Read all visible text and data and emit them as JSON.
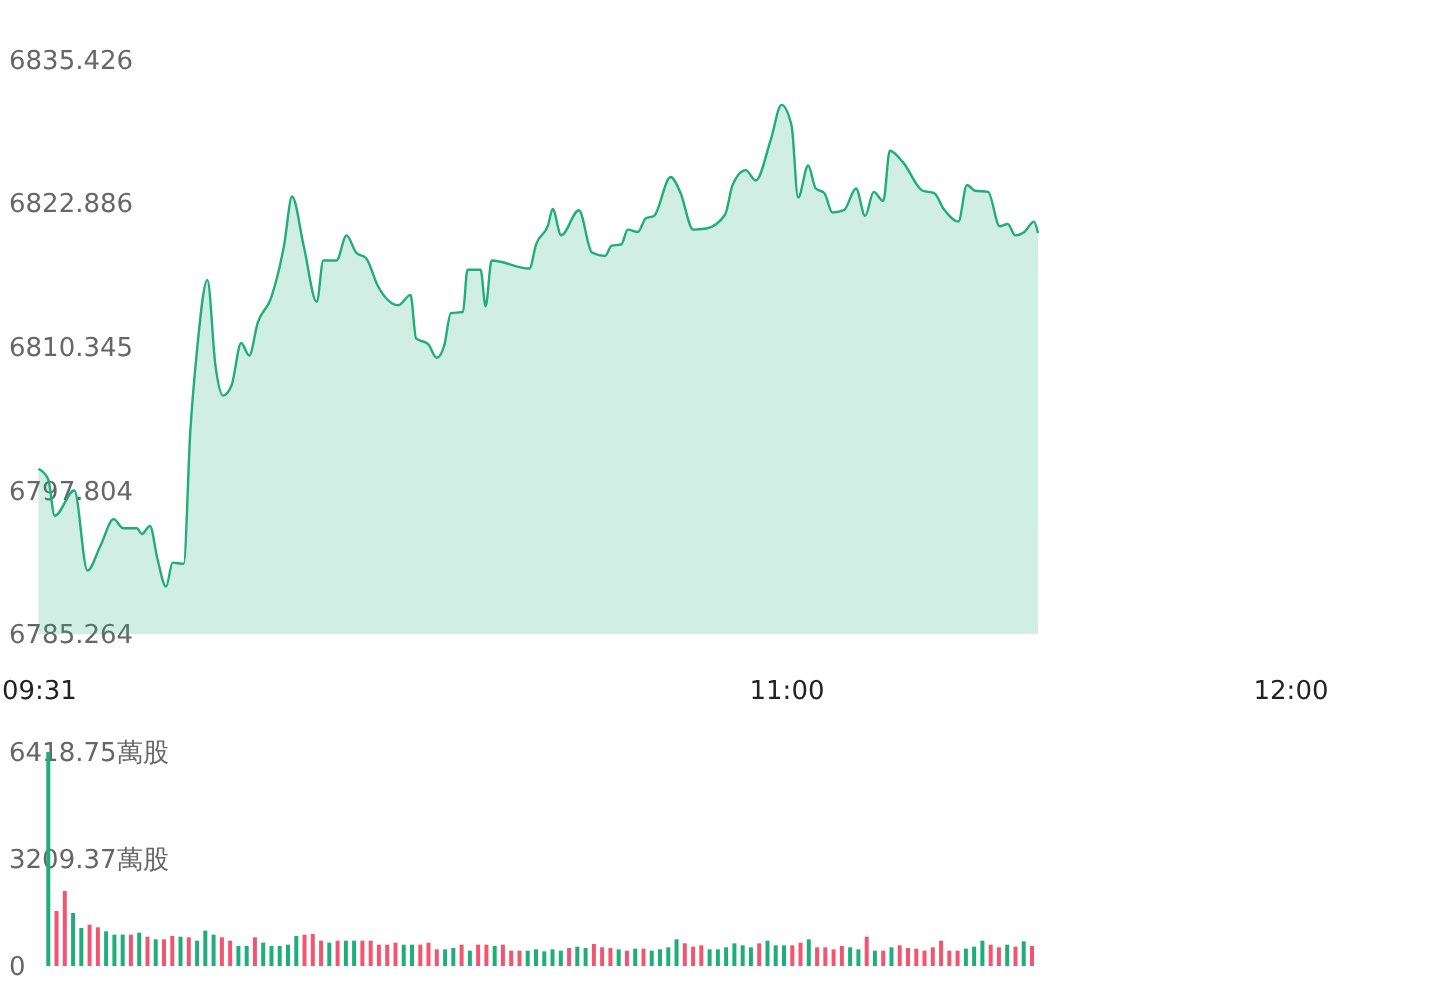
{
  "chart_data": [
    {
      "type": "area",
      "xlim": [
        9.5,
        12
      ],
      "xticks": [
        {
          "value": 9.5167,
          "label": "09:31"
        },
        {
          "value": 11,
          "label": "11:00"
        },
        {
          "value": 12,
          "label": "12:00"
        }
      ],
      "ylim": [
        6785.264,
        6835.426
      ],
      "yticks": [
        6785.264,
        6797.804,
        6810.345,
        6822.886,
        6835.426
      ],
      "series": [
        {
          "color": "#1fae7a",
          "x": [
            9.5167,
            9.536,
            9.549,
            9.588,
            9.614,
            9.64,
            9.666,
            9.685,
            9.712,
            9.722,
            9.738,
            9.753,
            9.77,
            9.783,
            9.805,
            9.818,
            9.831,
            9.852,
            9.868,
            9.883,
            9.9,
            9.919,
            9.935,
            9.952,
            9.978,
            10.004,
            10.02,
            10.043,
            10.069,
            10.082,
            10.108,
            10.128,
            10.147,
            10.167,
            10.19,
            10.231,
            10.255,
            10.266,
            10.29,
            10.307,
            10.322,
            10.335,
            10.359,
            10.368,
            10.394,
            10.404,
            10.416,
            10.491,
            10.504,
            10.528,
            10.537,
            10.554,
            10.589,
            10.615,
            10.641,
            10.654,
            10.673,
            10.686,
            10.706,
            10.722,
            10.738,
            10.771,
            10.79,
            10.816,
            10.842,
            10.879,
            10.894,
            10.92,
            10.94,
            10.97,
            10.991,
            11.011,
            11.024,
            11.044,
            11.059,
            11.076,
            11.092,
            11.115,
            11.139,
            11.157,
            11.174,
            11.193,
            11.206,
            11.232,
            11.271,
            11.294,
            11.313,
            11.342,
            11.359,
            11.375,
            11.401,
            11.424,
            11.44,
            11.455,
            11.473,
            11.492,
            11.5
          ],
          "values": [
            6799.7,
            6798.8,
            6795.6,
            6797.8,
            6790.8,
            6793.0,
            6795.3,
            6794.5,
            6794.5,
            6794.0,
            6794.7,
            6791.8,
            6789.4,
            6791.5,
            6791.4,
            6802.9,
            6809.9,
            6816.2,
            6808.7,
            6806.1,
            6807.0,
            6810.7,
            6809.6,
            6812.5,
            6814.6,
            6819.2,
            6823.5,
            6819.2,
            6814.3,
            6817.9,
            6817.9,
            6820.1,
            6818.6,
            6818.1,
            6815.7,
            6814.0,
            6814.9,
            6811.1,
            6810.6,
            6809.4,
            6810.5,
            6813.3,
            6813.4,
            6817.1,
            6817.1,
            6813.9,
            6817.9,
            6817.2,
            6819.3,
            6821.0,
            6822.4,
            6820.1,
            6822.3,
            6818.6,
            6818.3,
            6819.2,
            6819.3,
            6820.6,
            6820.4,
            6821.6,
            6821.8,
            6825.2,
            6823.9,
            6820.6,
            6820.7,
            6821.9,
            6824.5,
            6825.8,
            6824.9,
            6828.5,
            6831.5,
            6829.7,
            6823.4,
            6826.2,
            6824.2,
            6823.8,
            6822.1,
            6822.3,
            6824.2,
            6821.8,
            6823.9,
            6823.1,
            6827.5,
            6826.5,
            6824.0,
            6823.8,
            6822.4,
            6821.3,
            6824.5,
            6824.0,
            6823.9,
            6820.9,
            6821.1,
            6820.1,
            6820.4,
            6821.3,
            6820.3
          ]
        }
      ]
    },
    {
      "type": "bar",
      "xlim": [
        9.5,
        12
      ],
      "tick_labels": "y",
      "ylim": [
        0,
        6418.75
      ],
      "yticks": [
        0,
        {
          "value": 3209.37,
          "label": "3209.37萬股"
        },
        {
          "value": 6418.75,
          "label": "6418.75萬股"
        }
      ],
      "x": [
        9.5167,
        9.5333,
        9.55,
        9.5667,
        9.5833,
        9.6,
        9.6167,
        9.6333,
        9.65,
        9.6667,
        9.6833,
        9.7,
        9.7167,
        9.7333,
        9.75,
        9.7667,
        9.7833,
        9.8,
        9.8167,
        9.8333,
        9.85,
        9.8667,
        9.8833,
        9.9,
        9.9167,
        9.9333,
        9.95,
        9.9667,
        9.9833,
        10,
        10.0167,
        10.0333,
        10.05,
        10.0667,
        10.0833,
        10.1,
        10.1167,
        10.1333,
        10.15,
        10.1667,
        10.1833,
        10.2,
        10.2167,
        10.2333,
        10.25,
        10.2667,
        10.2833,
        10.3,
        10.3167,
        10.3333,
        10.35,
        10.3667,
        10.3833,
        10.4,
        10.4167,
        10.4333,
        10.45,
        10.4667,
        10.4833,
        10.5,
        10.5167,
        10.5333,
        10.55,
        10.5667,
        10.5833,
        10.6,
        10.6167,
        10.6333,
        10.65,
        10.6667,
        10.6833,
        10.7,
        10.7167,
        10.7333,
        10.75,
        10.7667,
        10.7833,
        10.8,
        10.8167,
        10.8333,
        10.85,
        10.8667,
        10.8833,
        10.9,
        10.9167,
        10.9333,
        10.95,
        10.9667,
        10.9833,
        11,
        11.0167,
        11.0333,
        11.05,
        11.0667,
        11.0833,
        11.1,
        11.1167,
        11.1333,
        11.15,
        11.1667,
        11.1833,
        11.2,
        11.2167,
        11.2333,
        11.25,
        11.2667,
        11.2833,
        11.3,
        11.3167,
        11.3333,
        11.35,
        11.3667,
        11.3833,
        11.4,
        11.4167,
        11.4333,
        11.45,
        11.4667,
        11.4833,
        11.5
      ],
      "values": [
        6418.75,
        1650,
        2250,
        1590,
        1140,
        1240,
        1160,
        1040,
        940,
        940,
        940,
        1000,
        880,
        800,
        800,
        900,
        880,
        860,
        760,
        1060,
        940,
        860,
        760,
        600,
        600,
        860,
        700,
        600,
        600,
        640,
        900,
        940,
        960,
        760,
        700,
        760,
        760,
        760,
        760,
        760,
        640,
        640,
        700,
        640,
        640,
        640,
        700,
        500,
        500,
        540,
        640,
        460,
        640,
        640,
        600,
        640,
        460,
        460,
        460,
        500,
        440,
        500,
        460,
        540,
        580,
        540,
        660,
        560,
        540,
        500,
        460,
        520,
        520,
        460,
        500,
        560,
        800,
        680,
        580,
        620,
        500,
        500,
        560,
        680,
        620,
        560,
        680,
        760,
        620,
        620,
        620,
        700,
        800,
        560,
        560,
        500,
        600,
        560,
        500,
        880,
        460,
        460,
        560,
        620,
        540,
        520,
        460,
        560,
        760,
        460,
        460,
        520,
        580,
        760,
        640,
        560,
        640,
        580,
        740,
        600
      ],
      "colors": [
        "#1fae7a",
        "#f2566f",
        "#f2566f",
        "#1fae7a",
        "#1fae7a",
        "#f2566f",
        "#f2566f",
        "#1fae7a",
        "#1fae7a",
        "#1fae7a",
        "#f2566f",
        "#1fae7a",
        "#f2566f",
        "#1fae7a",
        "#f2566f",
        "#f2566f",
        "#1fae7a",
        "#f2566f",
        "#1fae7a",
        "#1fae7a",
        "#1fae7a",
        "#f2566f",
        "#f2566f",
        "#1fae7a",
        "#1fae7a",
        "#f2566f",
        "#1fae7a",
        "#1fae7a",
        "#1fae7a",
        "#1fae7a",
        "#1fae7a",
        "#f2566f",
        "#f2566f",
        "#f2566f",
        "#1fae7a",
        "#f2566f",
        "#1fae7a",
        "#1fae7a",
        "#f2566f",
        "#f2566f",
        "#f2566f",
        "#f2566f",
        "#f2566f",
        "#1fae7a",
        "#1fae7a",
        "#f2566f",
        "#f2566f",
        "#f2566f",
        "#1fae7a",
        "#1fae7a",
        "#f2566f",
        "#1fae7a",
        "#f2566f",
        "#f2566f",
        "#1fae7a",
        "#f2566f",
        "#f2566f",
        "#f2566f",
        "#1fae7a",
        "#1fae7a",
        "#1fae7a",
        "#1fae7a",
        "#1fae7a",
        "#f2566f",
        "#1fae7a",
        "#1fae7a",
        "#f2566f",
        "#f2566f",
        "#f2566f",
        "#1fae7a",
        "#f2566f",
        "#1fae7a",
        "#f2566f",
        "#1fae7a",
        "#1fae7a",
        "#1fae7a",
        "#1fae7a",
        "#f2566f",
        "#f2566f",
        "#f2566f",
        "#1fae7a",
        "#1fae7a",
        "#1fae7a",
        "#1fae7a",
        "#1fae7a",
        "#1fae7a",
        "#f2566f",
        "#1fae7a",
        "#1fae7a",
        "#1fae7a",
        "#f2566f",
        "#f2566f",
        "#1fae7a",
        "#f2566f",
        "#f2566f",
        "#f2566f",
        "#f2566f",
        "#1fae7a",
        "#1fae7a",
        "#f2566f",
        "#1fae7a",
        "#f2566f",
        "#1fae7a",
        "#f2566f",
        "#f2566f",
        "#f2566f",
        "#f2566f",
        "#f2566f",
        "#f2566f",
        "#f2566f",
        "#f2566f",
        "#1fae7a",
        "#1fae7a",
        "#1fae7a",
        "#f2566f",
        "#f2566f",
        "#1fae7a",
        "#f2566f",
        "#1fae7a",
        "#f2566f"
      ]
    }
  ]
}
